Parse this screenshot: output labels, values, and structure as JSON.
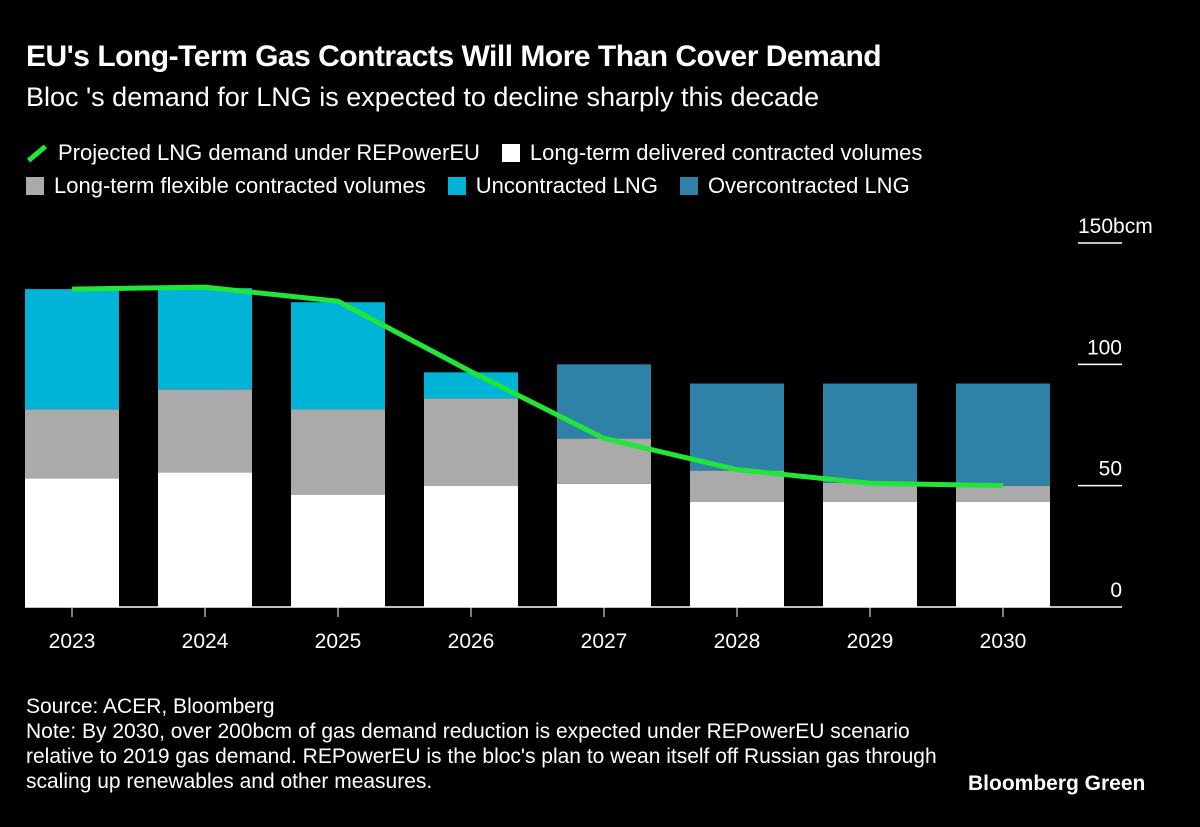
{
  "title": "EU's Long-Term Gas Contracts Will More Than Cover Demand",
  "subtitle": "Bloc 's demand for LNG is expected to decline sharply this decade",
  "source": "Source: ACER, Bloomberg",
  "note": "Note: By 2030, over 200bcm of gas demand reduction is expected under REPowerEU scenario relative to 2019 gas demand. REPowerEU is the bloc's plan to wean itself off Russian gas through scaling up renewables and other measures.",
  "brand": "Bloomberg Green",
  "chart_data": {
    "type": "bar",
    "stacked": true,
    "categories": [
      "2023",
      "2024",
      "2025",
      "2026",
      "2027",
      "2028",
      "2029",
      "2030"
    ],
    "series": [
      {
        "name": "Long-term delivered contracted volumes",
        "color": "#ffffff",
        "values": [
          53,
          55.4,
          46.3,
          50,
          50.8,
          43.4,
          43.4,
          43.4
        ]
      },
      {
        "name": "Long-term flexible contracted volumes",
        "color": "#aaaaaa",
        "values": [
          28.5,
          34.3,
          35.1,
          36,
          18.6,
          12.8,
          7.8,
          6.6
        ]
      },
      {
        "name": "Uncontracted LNG",
        "color": "#00b4d8",
        "values": [
          49.5,
          41.7,
          44.2,
          10.7,
          0,
          0,
          0,
          0
        ]
      },
      {
        "name": "Overcontracted LNG",
        "color": "#2e82a8",
        "values": [
          0,
          0,
          0,
          0,
          30.6,
          35.9,
          40.9,
          42.1
        ]
      }
    ],
    "line": {
      "name": "Projected LNG demand under REPowerEU",
      "color": "#22e53a",
      "values": [
        131,
        131.8,
        126,
        97,
        69.5,
        56.6,
        51,
        50
      ]
    },
    "yaxis": {
      "ticks": [
        "0",
        "50",
        "100",
        "150"
      ],
      "unit": "bcm",
      "range": [
        0,
        150
      ],
      "position": "right"
    },
    "grid": false,
    "legend": "top"
  }
}
